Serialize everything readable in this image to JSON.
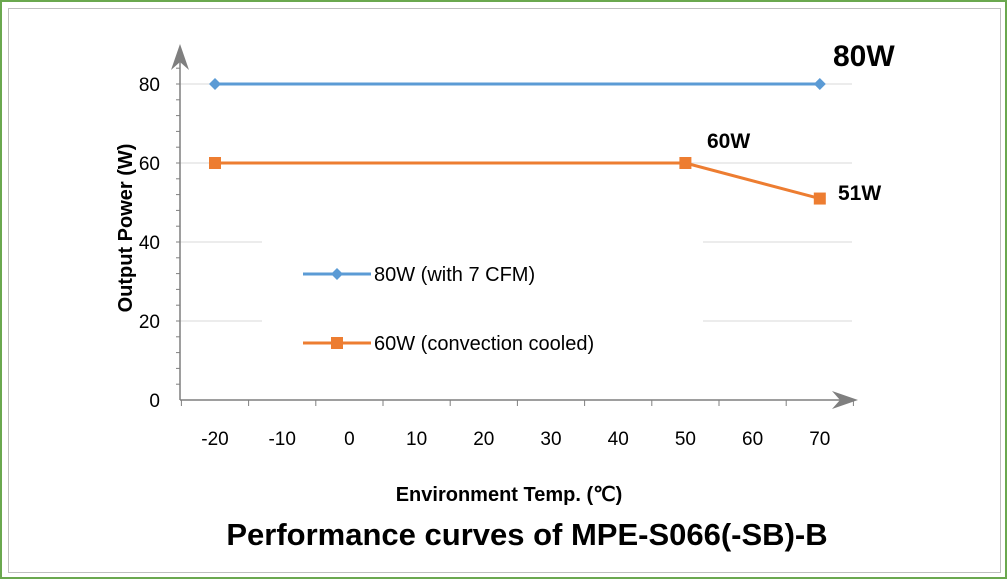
{
  "chart_data": {
    "type": "line",
    "title": "Performance curves of MPE-S066(-SB)-B",
    "xlabel": "Environment Temp. (℃)",
    "ylabel": "Output Power (W)",
    "x_ticks": [
      "-20",
      "-10",
      "0",
      "10",
      "20",
      "30",
      "40",
      "50",
      "60",
      "70"
    ],
    "y_ticks": [
      "0",
      "20",
      "40",
      "60",
      "80"
    ],
    "xlim": [
      -23,
      75
    ],
    "ylim": [
      0,
      88
    ],
    "grid": "horizontal",
    "legend_placement": "center-left",
    "series": [
      {
        "name": "80W (with 7 CFM)",
        "color": "#5b9bd5",
        "marker": "diamond",
        "points": [
          {
            "x": -20,
            "y": 80
          },
          {
            "x": 70,
            "y": 80
          }
        ]
      },
      {
        "name": "60W (convection cooled)",
        "color": "#ed7d31",
        "marker": "square",
        "points": [
          {
            "x": -20,
            "y": 60
          },
          {
            "x": 50,
            "y": 60
          },
          {
            "x": 70,
            "y": 51
          }
        ]
      }
    ],
    "annotations": [
      {
        "text": "80W",
        "color": "#ff0000"
      },
      {
        "text": "60W",
        "color": "#000000"
      },
      {
        "text": "51W",
        "color": "#000000"
      }
    ]
  }
}
